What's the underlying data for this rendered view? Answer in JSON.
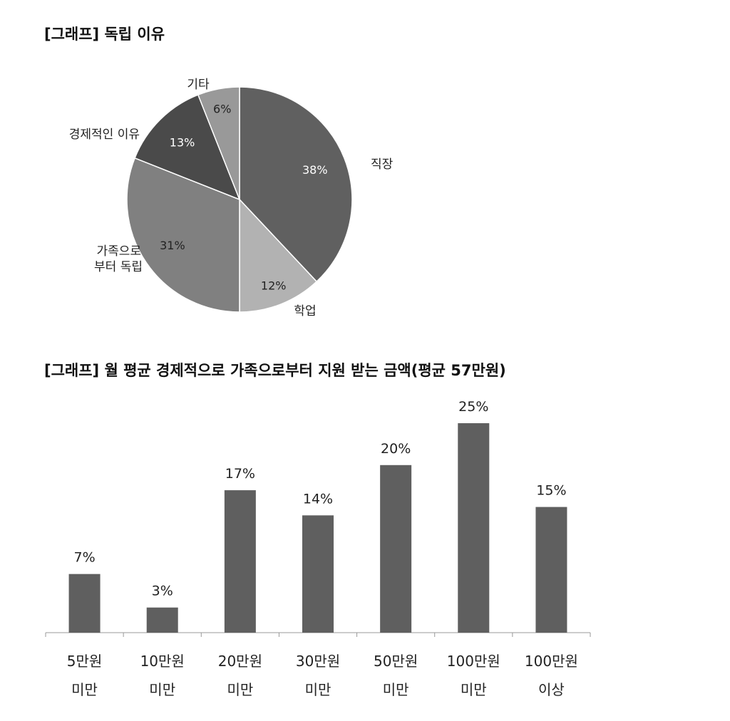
{
  "chart_data": [
    {
      "type": "pie",
      "title": "[그래프] 독립 이유",
      "slices": [
        {
          "label": "직장",
          "value": 38,
          "display": "38%",
          "color": "#606060",
          "text_color": "#ffffff"
        },
        {
          "label": "학업",
          "value": 12,
          "display": "12%",
          "color": "#b2b2b2",
          "text_color": "#222222"
        },
        {
          "label": "가족으로|부터 독립",
          "value": 31,
          "display": "31%",
          "color": "#808080",
          "text_color": "#222222"
        },
        {
          "label": "경제적인 이유",
          "value": 13,
          "display": "13%",
          "color": "#4a4a4a",
          "text_color": "#ffffff"
        },
        {
          "label": "기타",
          "value": 6,
          "display": "6%",
          "color": "#999999",
          "text_color": "#222222"
        }
      ]
    },
    {
      "type": "bar",
      "title": "[그래프] 월 평균 경제적으로 가족으로부터 지원 받는 금액(평균 57만원)",
      "categories": [
        [
          "5만원",
          "미만"
        ],
        [
          "10만원",
          "미만"
        ],
        [
          "20만원",
          "미만"
        ],
        [
          "30만원",
          "미만"
        ],
        [
          "50만원",
          "미만"
        ],
        [
          "100만원",
          "미만"
        ],
        [
          "100만원",
          "이상"
        ]
      ],
      "values": [
        7,
        3,
        17,
        14,
        20,
        25,
        15
      ],
      "labels": [
        "7%",
        "3%",
        "17%",
        "14%",
        "20%",
        "25%",
        "15%"
      ],
      "color": "#5f5f5f",
      "ylim": [
        0,
        25
      ]
    }
  ]
}
